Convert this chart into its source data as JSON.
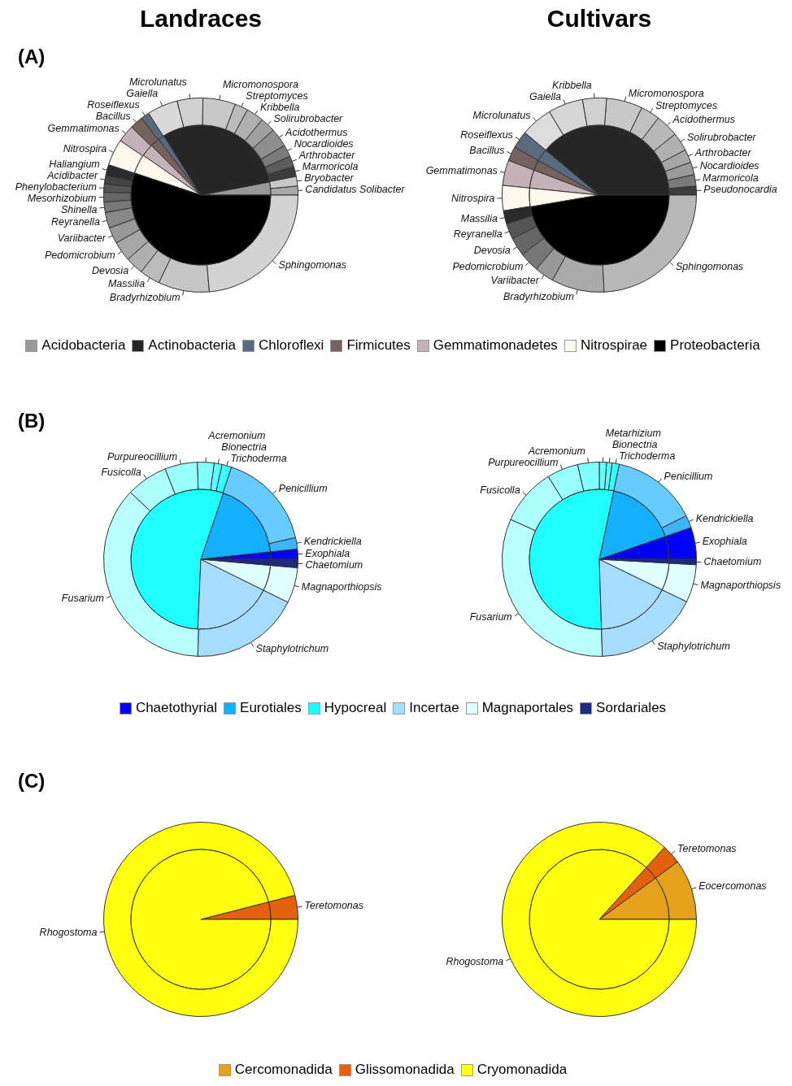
{
  "chart_data": [
    {
      "type": "donut",
      "title": "Landraces",
      "annotations": [
        "(A)"
      ],
      "categories": [
        "Candidatus Solibacter",
        "Bryobacter",
        "Marmoricola",
        "Arthrobacter",
        "Nocardioides",
        "Acidothermus",
        "Solirubrobacter",
        "Kribbella",
        "Streptomyces",
        "Micromonospora",
        "Microlunatus",
        "Gaiella",
        "Roseiflexus",
        "Bacillus",
        "Gemmatimonas",
        "Nitrospira",
        "Haliangium",
        "Acidibacter",
        "Phenylobacterium",
        "Mesorhizobium",
        "Shinella",
        "Reyranella",
        "Variibacter",
        "Pedomicrobium",
        "Devosia",
        "Massilia",
        "Bradyrhizobium",
        "Sphingomonas"
      ],
      "values": [
        1.5,
        1.6,
        1.65,
        1.8,
        2.0,
        3.1,
        2.5,
        2.9,
        2.2,
        5.4,
        4.3,
        5.1,
        1.4,
        2.2,
        2.9,
        4.4,
        1.8,
        1.4,
        1.4,
        1.6,
        1.75,
        2.6,
        2.7,
        3.3,
        3.0,
        3.4,
        8.5,
        23.6
      ],
      "colors": [
        "#a8a8a8",
        "#c8c8c8",
        "#3c3c3c",
        "#5c5c5c",
        "#7a7a7a",
        "#8e8e8e",
        "#a0a0a0",
        "#b0b0b0",
        "#bcbcbc",
        "#c8c8c8",
        "#d0d0d0",
        "#d8d8d8",
        "#5b6b7e",
        "#75625f",
        "#c4b2b8",
        "#fdf8ec",
        "#2a2a2a",
        "#444444",
        "#555555",
        "#666666",
        "#777777",
        "#888888",
        "#999999",
        "#a6a6a6",
        "#b0b0b0",
        "#bbbbbb",
        "#c6c6c6",
        "#d3d3d3"
      ]
    },
    {
      "type": "pie",
      "legend": "bottom",
      "categories": [
        "Acidobacteria",
        "Actinobacteria",
        "Chloroflexi",
        "Firmicutes",
        "Gemmatimonadetes",
        "Nitrospirae",
        "Proteobacteria"
      ],
      "values": [
        3.0,
        30.9,
        1.4,
        2.2,
        2.9,
        4.5,
        55.1
      ],
      "colors": [
        "#999999",
        "#262626",
        "#5b6b7e",
        "#75625f",
        "#c4b2b8",
        "#fdf8ec",
        "#000000"
      ]
    },
    {
      "type": "donut",
      "title": "Cultivars",
      "categories": [
        "Pseudonocardia",
        "Marmoricola",
        "Nocardioides",
        "Arthrobacter",
        "Solirubrobacter",
        "Acidothermus",
        "Streptomyces",
        "Micromonospora",
        "Kribbella",
        "Gaiella",
        "Microlunatus",
        "Roseiflexus",
        "Bacillus",
        "Gemmatimonas",
        "Nitrospira",
        "Massilia",
        "Reyranella",
        "Devosia",
        "Pedomicrobium",
        "Variibacter",
        "Bradyrhizobium",
        "Sphingomonas"
      ],
      "values": [
        1.5,
        1.9,
        2.1,
        2.2,
        3.1,
        3.8,
        3.2,
        6.0,
        4.0,
        5.8,
        5.3,
        2.9,
        2.4,
        4.2,
        4.2,
        2.2,
        2.6,
        3.1,
        3.3,
        3.2,
        8.8,
        24.2
      ],
      "colors": [
        "#3c3c3c",
        "#7a7a7a",
        "#9a9a9a",
        "#a6a6a6",
        "#b0b0b0",
        "#b8b8b8",
        "#c0c0c0",
        "#c8c8c8",
        "#d0d0d0",
        "#d6d6d6",
        "#dcdcdc",
        "#5b6b7e",
        "#75625f",
        "#c4b2b8",
        "#fdf8ec",
        "#2a2a2a",
        "#555555",
        "#666666",
        "#777777",
        "#999999",
        "#aaaaaa",
        "#b8b8b8"
      ]
    },
    {
      "type": "pie",
      "categories": [
        null,
        null,
        null,
        null,
        null,
        null
      ],
      "values": [
        38.9,
        2.9,
        2.4,
        4.2,
        4.3,
        47.3
      ],
      "colors": [
        "#262626",
        "#5b6b7e",
        "#75625f",
        "#c4b2b8",
        "#fdf8ec",
        "#000000"
      ]
    },
    {
      "type": "donut",
      "annotations": [
        "(B)"
      ],
      "categories": [
        "Exophiala",
        "Kendrickiella",
        "Penicillium",
        "Trichoderma",
        "Bionectria",
        "Acremonium",
        "Purpureocillium",
        "Fusicolla",
        "Fusarium",
        "Staphylotrichum",
        "Magnaporthiopsis",
        "Chaetomium"
      ],
      "values": [
        1.7,
        1.9,
        16.3,
        1.6,
        1.3,
        2.8,
        5.4,
        6.9,
        36.6,
        18.2,
        5.9,
        1.4
      ],
      "colors": [
        "#0000ff",
        "#3cb4ff",
        "#66ccff",
        "#33ffff",
        "#55ffff",
        "#80ffff",
        "#99ffff",
        "#adffff",
        "#b8ffff",
        "#a6dcff",
        "#e0ffff",
        "#1a2a80"
      ]
    },
    {
      "type": "pie",
      "legend": "bottom",
      "categories": [
        "Chaetothyrial",
        "Eurotiales",
        "Hypocreal",
        "Incertae",
        "Magnaportales",
        "Sordariales"
      ],
      "values": [
        1.7,
        18.1,
        54.5,
        18.4,
        5.9,
        1.4
      ],
      "colors": [
        "#0000ff",
        "#14b0ff",
        "#1effff",
        "#a6dcff",
        "#e0ffff",
        "#1a2a80"
      ]
    },
    {
      "type": "donut",
      "categories": [
        "Exophiala",
        "Kendrickiella",
        "Penicillium",
        "Trichoderma",
        "Bionectria",
        "Metarhizium",
        "Acremonium",
        "Purpureocillium",
        "Fusicolla",
        "Fusarium",
        "Staphylotrichum",
        "Magnaporthiopsis",
        "Chaetomium"
      ],
      "values": [
        5.3,
        2.1,
        14.3,
        1.2,
        0.9,
        1.2,
        3.6,
        5.2,
        9.5,
        32.2,
        17.3,
        6.3,
        0.9
      ],
      "colors": [
        "#0000ff",
        "#3cb4ff",
        "#66ccff",
        "#33ffff",
        "#55ffff",
        "#66ffff",
        "#80ffff",
        "#99ffff",
        "#adffff",
        "#b8ffff",
        "#a6dcff",
        "#e0ffff",
        "#1a2a80"
      ]
    },
    {
      "type": "pie",
      "categories": [
        null,
        null,
        null,
        null,
        null,
        null
      ],
      "values": [
        5.3,
        16.4,
        53.8,
        17.3,
        6.3,
        0.9
      ],
      "colors": [
        "#0000ff",
        "#14b0ff",
        "#1effff",
        "#a6dcff",
        "#e0ffff",
        "#1a2a80"
      ]
    },
    {
      "type": "donut",
      "annotations": [
        "(C)"
      ],
      "categories": [
        "Teretomonas",
        "Rhogostoma"
      ],
      "values": [
        4.0,
        96.0
      ],
      "colors": [
        "#e5600c",
        "#ffff0f"
      ]
    },
    {
      "type": "pie",
      "categories": [
        null,
        null
      ],
      "values": [
        4.0,
        96.0
      ],
      "colors": [
        "#e5600c",
        "#ffff0f"
      ]
    },
    {
      "type": "donut",
      "categories": [
        "Eocercomonas",
        "Teretomonas",
        "Rhogostoma"
      ],
      "values": [
        10.1,
        3.2,
        86.7
      ],
      "colors": [
        "#e5a11c",
        "#e5600c",
        "#ffff0f"
      ]
    },
    {
      "type": "pie",
      "legend": "bottom",
      "categories": [
        "Cercomonadida",
        "Glissomonadida",
        "Cryomonadida"
      ],
      "values": [
        10.1,
        3.2,
        86.7
      ],
      "colors": [
        "#e5a11c",
        "#e5600c",
        "#ffff0f"
      ]
    }
  ]
}
